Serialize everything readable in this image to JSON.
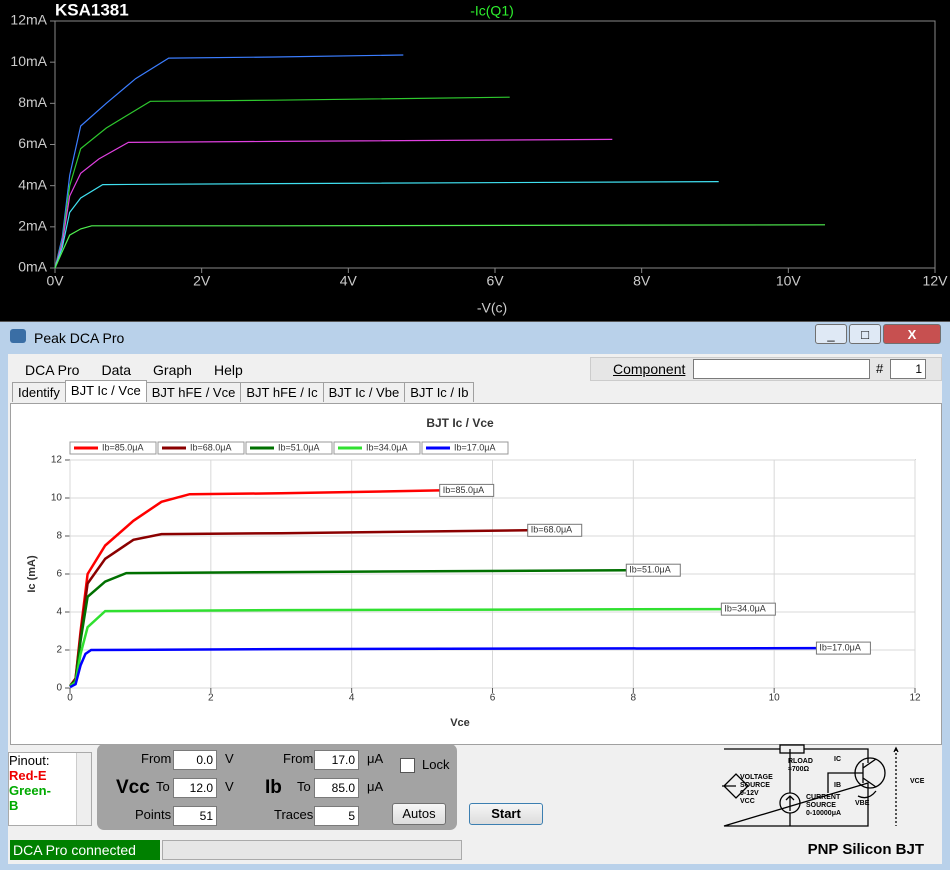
{
  "chart_data": [
    {
      "type": "line",
      "title": "KSA1381",
      "trace_label": "-Ic(Q1)",
      "x_label": "-V(c)",
      "xlim": [
        0,
        12
      ],
      "ylim": [
        0,
        12
      ],
      "xticks": [
        {
          "value": 0,
          "label": "0V"
        },
        {
          "value": 2,
          "label": "2V"
        },
        {
          "value": 4,
          "label": "4V"
        },
        {
          "value": 6,
          "label": "6V"
        },
        {
          "value": 8,
          "label": "8V"
        },
        {
          "value": 10,
          "label": "10V"
        },
        {
          "value": 12,
          "label": "12V"
        }
      ],
      "yticks": [
        {
          "value": 0,
          "label": "0mA"
        },
        {
          "value": 2,
          "label": "2mA"
        },
        {
          "value": 4,
          "label": "4mA"
        },
        {
          "value": 6,
          "label": "6mA"
        },
        {
          "value": 8,
          "label": "8mA"
        },
        {
          "value": 10,
          "label": "10mA"
        },
        {
          "value": 12,
          "label": "12mA"
        }
      ],
      "grid": false,
      "background": "#000000",
      "series": [
        {
          "color": "#3b7dff",
          "x": [
            0,
            0.1,
            0.2,
            0.35,
            0.7,
            1.1,
            1.55,
            3,
            4.75
          ],
          "values": [
            0,
            1.5,
            4.5,
            6.9,
            8,
            9.2,
            10.2,
            10.25,
            10.35
          ]
        },
        {
          "color": "#2ec82e",
          "x": [
            0,
            0.1,
            0.2,
            0.35,
            0.7,
            1.3,
            3,
            6.2
          ],
          "values": [
            0,
            1.3,
            4,
            5.8,
            6.8,
            8.1,
            8.15,
            8.3
          ]
        },
        {
          "color": "#e040e0",
          "x": [
            0,
            0.1,
            0.2,
            0.35,
            0.6,
            1.0,
            3,
            7.6
          ],
          "values": [
            0,
            1.2,
            3.5,
            4.6,
            5.3,
            6.1,
            6.15,
            6.25
          ]
        },
        {
          "color": "#40e0f0",
          "x": [
            0,
            0.1,
            0.2,
            0.35,
            0.65,
            3,
            9.05
          ],
          "values": [
            0,
            1,
            2.7,
            3.4,
            4.05,
            4.1,
            4.2
          ]
        },
        {
          "color": "#50f050",
          "x": [
            0,
            0.1,
            0.2,
            0.35,
            0.5,
            3,
            10.5
          ],
          "values": [
            0,
            0.8,
            1.6,
            1.9,
            2.05,
            2.05,
            2.1
          ]
        }
      ]
    },
    {
      "type": "line",
      "title": "BJT Ic / Vce",
      "x_label": "Vce",
      "y_label": "Ic (mA)",
      "xlim": [
        0,
        12
      ],
      "ylim": [
        0,
        12
      ],
      "xticks": [
        0,
        2,
        4,
        6,
        8,
        10,
        12
      ],
      "yticks": [
        0,
        2,
        4,
        6,
        8,
        10,
        12
      ],
      "grid": true,
      "legend": "top",
      "series": [
        {
          "name": "Ib=85.0μA",
          "color": "#ff0000",
          "x": [
            0,
            0.08,
            0.15,
            0.25,
            0.5,
            0.9,
            1.3,
            1.7,
            3,
            5.25
          ],
          "values": [
            0.1,
            0.5,
            3,
            6,
            7.5,
            8.8,
            9.8,
            10.2,
            10.25,
            10.4
          ]
        },
        {
          "name": "Ib=68.0μA",
          "color": "#8b0000",
          "x": [
            0,
            0.08,
            0.15,
            0.25,
            0.5,
            0.9,
            1.3,
            3,
            6.5
          ],
          "values": [
            0.1,
            0.5,
            2.8,
            5.5,
            6.8,
            7.8,
            8.1,
            8.15,
            8.3
          ]
        },
        {
          "name": "Ib=51.0μA",
          "color": "#007000",
          "x": [
            0,
            0.08,
            0.15,
            0.25,
            0.5,
            0.8,
            3,
            7.9
          ],
          "values": [
            0.1,
            0.4,
            2.5,
            4.8,
            5.6,
            6.05,
            6.1,
            6.2
          ]
        },
        {
          "name": "Ib=34.0μA",
          "color": "#30e030",
          "x": [
            0,
            0.08,
            0.15,
            0.25,
            0.5,
            3,
            9.25
          ],
          "values": [
            0.1,
            0.3,
            1.8,
            3.2,
            4.05,
            4.1,
            4.15
          ]
        },
        {
          "name": "Ib=17.0μA",
          "color": "#0000ff",
          "x": [
            0,
            0.08,
            0.15,
            0.22,
            0.3,
            3,
            10.6
          ],
          "values": [
            0.05,
            0.2,
            1.2,
            1.8,
            2.0,
            2.05,
            2.1
          ]
        }
      ]
    }
  ],
  "window": {
    "title": "Peak DCA Pro"
  },
  "menu": [
    "DCA Pro",
    "Data",
    "Graph",
    "Help"
  ],
  "component": {
    "label": "Component",
    "number_label": "#",
    "number": "1"
  },
  "tabs": [
    "Identify",
    "BJT Ic / Vce",
    "BJT hFE / Vce",
    "BJT hFE / Ic",
    "BJT Ic / Vbe",
    "BJT Ic / Ib"
  ],
  "controls": {
    "vcc": {
      "label": "Vcc",
      "from_label": "From",
      "from": "0.0",
      "to_label": "To",
      "to": "12.0",
      "unit": "V",
      "points_label": "Points",
      "points": "51"
    },
    "ib": {
      "label": "Ib",
      "from_label": "From",
      "from": "17.0",
      "to_label": "To",
      "to": "85.0",
      "unit": "μA",
      "traces_label": "Traces",
      "traces": "5"
    },
    "lock": "Lock",
    "autos": "Autos",
    "start": "Start"
  },
  "pinout": {
    "label": "Pinout:",
    "pins": [
      "Red-E",
      "Green-B"
    ]
  },
  "diagram": {
    "r_load": "RLOAD",
    "r_value": "≈700Ω",
    "ic": "IC",
    "ib": "IB",
    "voltage_source": [
      "VOLTAGE",
      "SOURCE",
      "0-12V",
      "VCC"
    ],
    "current_source": [
      "CURRENT",
      "SOURCE",
      "0-10000μA"
    ],
    "vbe": "VBE",
    "vce": "VCE"
  },
  "status": {
    "connection": "DCA Pro connected",
    "device": "PNP Silicon BJT"
  }
}
